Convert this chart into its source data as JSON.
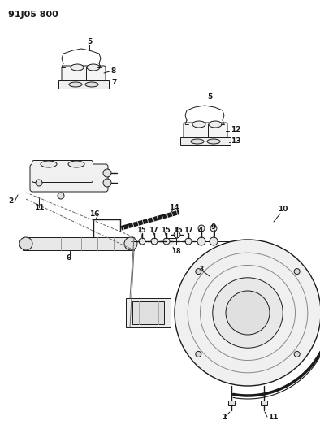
{
  "title": "91J05 800",
  "bg_color": "#ffffff",
  "lc": "#1a1a1a",
  "figsize": [
    3.94,
    5.33
  ],
  "dpi": 100
}
